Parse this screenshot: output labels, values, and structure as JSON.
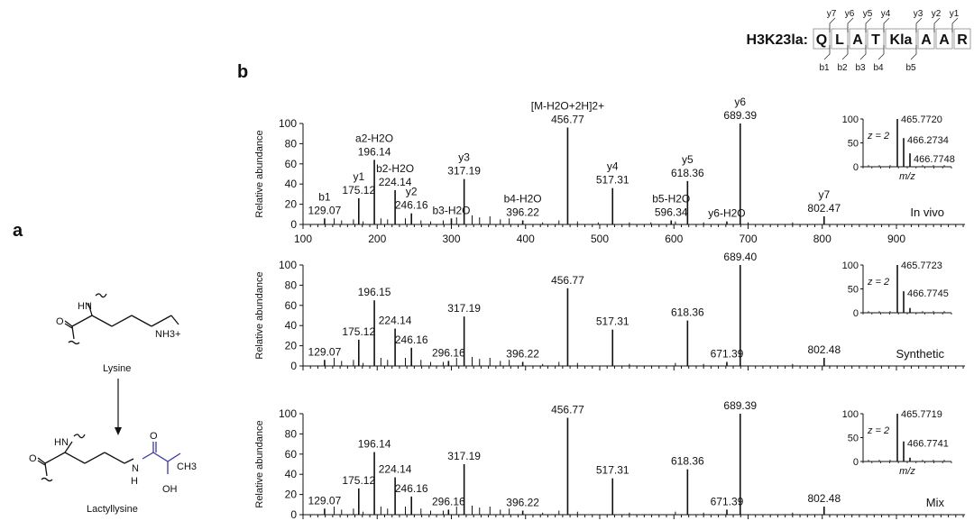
{
  "figure": {
    "panel_a": "a",
    "panel_b": "b",
    "peptide_label": "H3K23la:",
    "sequence_boxes": [
      "Q",
      "L",
      "A",
      "T",
      "Kla",
      "A",
      "A",
      "R"
    ],
    "y_ions": [
      "y7",
      "y6",
      "y5",
      "y4",
      "y3",
      "y2",
      "y1"
    ],
    "b_ions": [
      "b1",
      "b2",
      "b3",
      "b4",
      "b5"
    ]
  },
  "structures": {
    "top_name": "Lysine",
    "bottom_name": "Lactyllysine",
    "hn": "HN",
    "o": "O",
    "nh3": "NH3+",
    "n": "N",
    "h": "H",
    "ch3": "CH3",
    "oh": "OH",
    "accent_color": "#3a3a9a"
  },
  "chart_data": [
    {
      "type": "bar",
      "name": "In vivo",
      "ylabel": "Relative abundance",
      "xlabel": "",
      "xlim": [
        100,
        990
      ],
      "ylim": [
        0,
        100
      ],
      "xticks": [
        100,
        200,
        300,
        400,
        500,
        600,
        700,
        800,
        900
      ],
      "yticks": [
        0,
        20,
        40,
        60,
        80,
        100
      ],
      "peaks": [
        {
          "mz": 129.07,
          "value": 6,
          "label": "129.07",
          "ion": "b1"
        },
        {
          "mz": 175.12,
          "value": 26,
          "label": "175.12",
          "ion": "y1"
        },
        {
          "mz": 196.14,
          "value": 64,
          "label": "196.14",
          "ion": "a2-H2O"
        },
        {
          "mz": 224.14,
          "value": 34,
          "label": "224.14",
          "ion": "b2-H2O"
        },
        {
          "mz": 246.16,
          "value": 11,
          "label": "246.16",
          "ion": "y2"
        },
        {
          "mz": 300.0,
          "value": 6,
          "label": "",
          "ion": "b3-H2O"
        },
        {
          "mz": 317.19,
          "value": 45,
          "label": "317.19",
          "ion": "y3"
        },
        {
          "mz": 396.22,
          "value": 4,
          "label": "396.22",
          "ion": "b4-H2O"
        },
        {
          "mz": 456.77,
          "value": 96,
          "label": "456.77",
          "ion": "[M-H2O+2H]2+"
        },
        {
          "mz": 517.31,
          "value": 36,
          "label": "517.31",
          "ion": "y4"
        },
        {
          "mz": 596.34,
          "value": 4,
          "label": "596.34",
          "ion": "b5-H2O"
        },
        {
          "mz": 618.36,
          "value": 43,
          "label": "618.36",
          "ion": "y5"
        },
        {
          "mz": 671.39,
          "value": 3,
          "label": "",
          "ion": "y6-H2O"
        },
        {
          "mz": 689.39,
          "value": 100,
          "label": "689.39",
          "ion": "y6"
        },
        {
          "mz": 802.47,
          "value": 8,
          "label": "802.47",
          "ion": "y7"
        }
      ],
      "minor_peaks": [
        {
          "mz": 142,
          "value": 6
        },
        {
          "mz": 152,
          "value": 4
        },
        {
          "mz": 168,
          "value": 5
        },
        {
          "mz": 181,
          "value": 3
        },
        {
          "mz": 205,
          "value": 6
        },
        {
          "mz": 214,
          "value": 5
        },
        {
          "mz": 238,
          "value": 6
        },
        {
          "mz": 259,
          "value": 4
        },
        {
          "mz": 272,
          "value": 3
        },
        {
          "mz": 289,
          "value": 4
        },
        {
          "mz": 307,
          "value": 7
        },
        {
          "mz": 328,
          "value": 9
        },
        {
          "mz": 338,
          "value": 7
        },
        {
          "mz": 352,
          "value": 8
        },
        {
          "mz": 366,
          "value": 5
        },
        {
          "mz": 378,
          "value": 6
        },
        {
          "mz": 423,
          "value": 2
        },
        {
          "mz": 445,
          "value": 4
        },
        {
          "mz": 470,
          "value": 3
        },
        {
          "mz": 498,
          "value": 2
        },
        {
          "mz": 540,
          "value": 2
        },
        {
          "mz": 569,
          "value": 2
        },
        {
          "mz": 602,
          "value": 3
        },
        {
          "mz": 640,
          "value": 2
        },
        {
          "mz": 700,
          "value": 2
        },
        {
          "mz": 760,
          "value": 2
        }
      ],
      "inset": {
        "xlabel": "m/z",
        "charge": "z = 2",
        "yticks": [
          0,
          50,
          100
        ],
        "peaks": [
          {
            "value": 100,
            "label": "465.7720"
          },
          {
            "value": 60,
            "label": "466.2734"
          },
          {
            "value": 28,
            "label": "466.7748"
          }
        ]
      }
    },
    {
      "type": "bar",
      "name": "Synthetic",
      "ylabel": "Relative abundance",
      "xlabel": "",
      "xlim": [
        100,
        990
      ],
      "ylim": [
        0,
        100
      ],
      "yticks": [
        0,
        20,
        40,
        60,
        80,
        100
      ],
      "peaks": [
        {
          "mz": 129.07,
          "value": 6,
          "label": "129.07"
        },
        {
          "mz": 175.12,
          "value": 26,
          "label": "175.12"
        },
        {
          "mz": 196.15,
          "value": 65,
          "label": "196.15"
        },
        {
          "mz": 224.14,
          "value": 37,
          "label": "224.14"
        },
        {
          "mz": 246.16,
          "value": 18,
          "label": "246.16"
        },
        {
          "mz": 296.16,
          "value": 5,
          "label": "296.16"
        },
        {
          "mz": 317.19,
          "value": 49,
          "label": "317.19"
        },
        {
          "mz": 396.22,
          "value": 4,
          "label": "396.22"
        },
        {
          "mz": 456.77,
          "value": 77,
          "label": "456.77"
        },
        {
          "mz": 517.31,
          "value": 36,
          "label": "517.31"
        },
        {
          "mz": 618.36,
          "value": 45,
          "label": "618.36"
        },
        {
          "mz": 671.39,
          "value": 4,
          "label": "671.39"
        },
        {
          "mz": 689.4,
          "value": 100,
          "label": "689.40"
        },
        {
          "mz": 802.48,
          "value": 8,
          "label": "802.48"
        }
      ],
      "minor_peaks": [
        {
          "mz": 142,
          "value": 8
        },
        {
          "mz": 152,
          "value": 5
        },
        {
          "mz": 168,
          "value": 6
        },
        {
          "mz": 181,
          "value": 3
        },
        {
          "mz": 205,
          "value": 8
        },
        {
          "mz": 214,
          "value": 6
        },
        {
          "mz": 238,
          "value": 8
        },
        {
          "mz": 259,
          "value": 6
        },
        {
          "mz": 272,
          "value": 4
        },
        {
          "mz": 289,
          "value": 4
        },
        {
          "mz": 307,
          "value": 8
        },
        {
          "mz": 328,
          "value": 9
        },
        {
          "mz": 338,
          "value": 7
        },
        {
          "mz": 352,
          "value": 8
        },
        {
          "mz": 366,
          "value": 5
        },
        {
          "mz": 378,
          "value": 6
        },
        {
          "mz": 423,
          "value": 2
        },
        {
          "mz": 445,
          "value": 4
        },
        {
          "mz": 470,
          "value": 3
        },
        {
          "mz": 540,
          "value": 2
        },
        {
          "mz": 602,
          "value": 3
        },
        {
          "mz": 640,
          "value": 2
        },
        {
          "mz": 760,
          "value": 2
        }
      ],
      "inset": {
        "xlabel": "",
        "charge": "z = 2",
        "yticks": [
          0,
          50,
          100
        ],
        "peaks": [
          {
            "value": 100,
            "label": "465.7723"
          },
          {
            "value": 45,
            "label": "466.7745"
          },
          {
            "value": 10,
            "label": ""
          }
        ]
      }
    },
    {
      "type": "bar",
      "name": "Mix",
      "ylabel": "Relative abundance",
      "xlabel": "",
      "xlim": [
        100,
        990
      ],
      "ylim": [
        0,
        100
      ],
      "yticks": [
        0,
        20,
        40,
        60,
        80,
        100
      ],
      "peaks": [
        {
          "mz": 129.07,
          "value": 6,
          "label": "129.07"
        },
        {
          "mz": 175.12,
          "value": 26,
          "label": "175.12"
        },
        {
          "mz": 196.14,
          "value": 62,
          "label": "196.14"
        },
        {
          "mz": 224.14,
          "value": 37,
          "label": "224.14"
        },
        {
          "mz": 246.16,
          "value": 18,
          "label": "246.16"
        },
        {
          "mz": 296.16,
          "value": 5,
          "label": "296.16"
        },
        {
          "mz": 317.19,
          "value": 50,
          "label": "317.19"
        },
        {
          "mz": 396.22,
          "value": 4,
          "label": "396.22"
        },
        {
          "mz": 456.77,
          "value": 96,
          "label": "456.77"
        },
        {
          "mz": 517.31,
          "value": 36,
          "label": "517.31"
        },
        {
          "mz": 618.36,
          "value": 45,
          "label": "618.36"
        },
        {
          "mz": 671.39,
          "value": 5,
          "label": "671.39"
        },
        {
          "mz": 689.39,
          "value": 100,
          "label": "689.39"
        },
        {
          "mz": 802.48,
          "value": 8,
          "label": "802.48"
        }
      ],
      "minor_peaks": [
        {
          "mz": 142,
          "value": 8
        },
        {
          "mz": 152,
          "value": 5
        },
        {
          "mz": 168,
          "value": 6
        },
        {
          "mz": 181,
          "value": 3
        },
        {
          "mz": 205,
          "value": 8
        },
        {
          "mz": 214,
          "value": 6
        },
        {
          "mz": 238,
          "value": 8
        },
        {
          "mz": 259,
          "value": 6
        },
        {
          "mz": 272,
          "value": 4
        },
        {
          "mz": 289,
          "value": 4
        },
        {
          "mz": 307,
          "value": 8
        },
        {
          "mz": 328,
          "value": 9
        },
        {
          "mz": 338,
          "value": 7
        },
        {
          "mz": 352,
          "value": 8
        },
        {
          "mz": 366,
          "value": 5
        },
        {
          "mz": 378,
          "value": 6
        },
        {
          "mz": 423,
          "value": 2
        },
        {
          "mz": 445,
          "value": 4
        },
        {
          "mz": 470,
          "value": 3
        },
        {
          "mz": 540,
          "value": 2
        },
        {
          "mz": 602,
          "value": 3
        },
        {
          "mz": 640,
          "value": 2
        },
        {
          "mz": 760,
          "value": 2
        }
      ],
      "inset": {
        "xlabel": "m/z",
        "charge": "z = 2",
        "yticks": [
          0,
          50,
          100
        ],
        "peaks": [
          {
            "value": 100,
            "label": "465.7719"
          },
          {
            "value": 42,
            "label": "466.7741"
          },
          {
            "value": 8,
            "label": ""
          }
        ]
      }
    }
  ]
}
